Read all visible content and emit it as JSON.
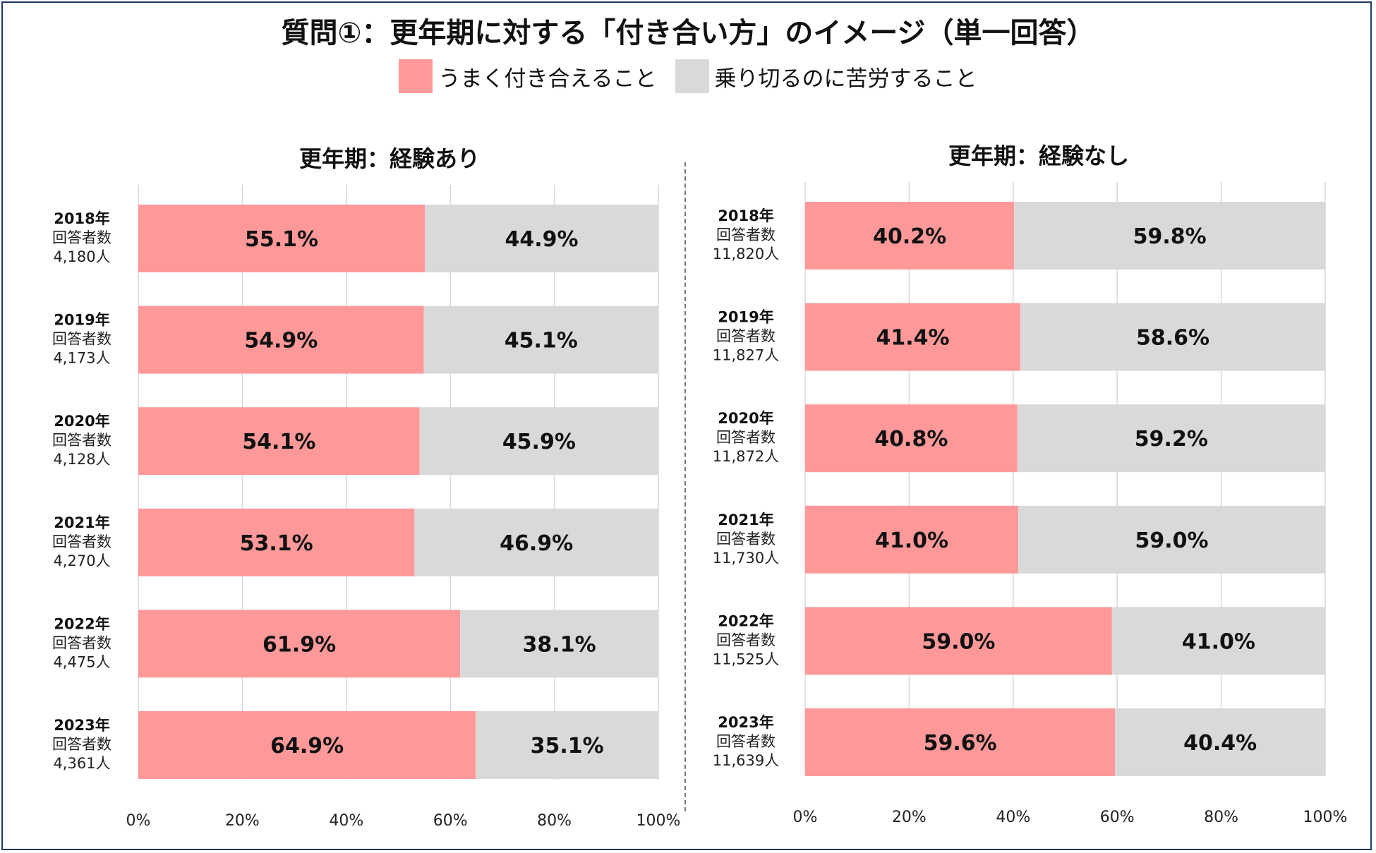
{
  "title": "質問①：更年期に対する「付き合い方」のイメージ（単一回答）",
  "legend": {
    "a": {
      "label": "うまく付き合えること",
      "color": "#ff9999"
    },
    "b": {
      "label": "乗り切るのに苦労すること",
      "color": "#d9d9d9"
    }
  },
  "chart_data": [
    {
      "type": "bar",
      "orientation": "horizontal-stacked-100",
      "title": "更年期：経験あり",
      "categories": [
        {
          "year": "2018年",
          "sub": "回答者数",
          "n": "4,180人"
        },
        {
          "year": "2019年",
          "sub": "回答者数",
          "n": "4,173人"
        },
        {
          "year": "2020年",
          "sub": "回答者数",
          "n": "4,128人"
        },
        {
          "year": "2021年",
          "sub": "回答者数",
          "n": "4,270人"
        },
        {
          "year": "2022年",
          "sub": "回答者数",
          "n": "4,475人"
        },
        {
          "year": "2023年",
          "sub": "回答者数",
          "n": "4,361人"
        }
      ],
      "series": [
        {
          "name": "うまく付き合えること",
          "values": [
            55.1,
            54.9,
            54.1,
            53.1,
            61.9,
            64.9
          ],
          "labels": [
            "55.1%",
            "54.9%",
            "54.1%",
            "53.1%",
            "61.9%",
            "64.9%"
          ]
        },
        {
          "name": "乗り切るのに苦労すること",
          "values": [
            44.9,
            45.1,
            45.9,
            46.9,
            38.1,
            35.1
          ],
          "labels": [
            "44.9%",
            "45.1%",
            "45.9%",
            "46.9%",
            "38.1%",
            "35.1%"
          ]
        }
      ],
      "xlim": [
        0,
        100
      ],
      "xticks": [
        "0%",
        "20%",
        "40%",
        "60%",
        "80%",
        "100%"
      ],
      "grid": true
    },
    {
      "type": "bar",
      "orientation": "horizontal-stacked-100",
      "title": "更年期：経験なし",
      "categories": [
        {
          "year": "2018年",
          "sub": "回答者数",
          "n": "11,820人"
        },
        {
          "year": "2019年",
          "sub": "回答者数",
          "n": "11,827人"
        },
        {
          "year": "2020年",
          "sub": "回答者数",
          "n": "11,872人"
        },
        {
          "year": "2021年",
          "sub": "回答者数",
          "n": "11,730人"
        },
        {
          "year": "2022年",
          "sub": "回答者数",
          "n": "11,525人"
        },
        {
          "year": "2023年",
          "sub": "回答者数",
          "n": "11,639人"
        }
      ],
      "series": [
        {
          "name": "うまく付き合えること",
          "values": [
            40.2,
            41.4,
            40.8,
            41.0,
            59.0,
            59.6
          ],
          "labels": [
            "40.2%",
            "41.4%",
            "40.8%",
            "41.0%",
            "59.0%",
            "59.6%"
          ]
        },
        {
          "name": "乗り切るのに苦労すること",
          "values": [
            59.8,
            58.6,
            59.2,
            59.0,
            41.0,
            40.4
          ],
          "labels": [
            "59.8%",
            "58.6%",
            "59.2%",
            "59.0%",
            "41.0%",
            "40.4%"
          ]
        }
      ],
      "xlim": [
        0,
        100
      ],
      "xticks": [
        "0%",
        "20%",
        "40%",
        "60%",
        "80%",
        "100%"
      ],
      "grid": true
    }
  ]
}
